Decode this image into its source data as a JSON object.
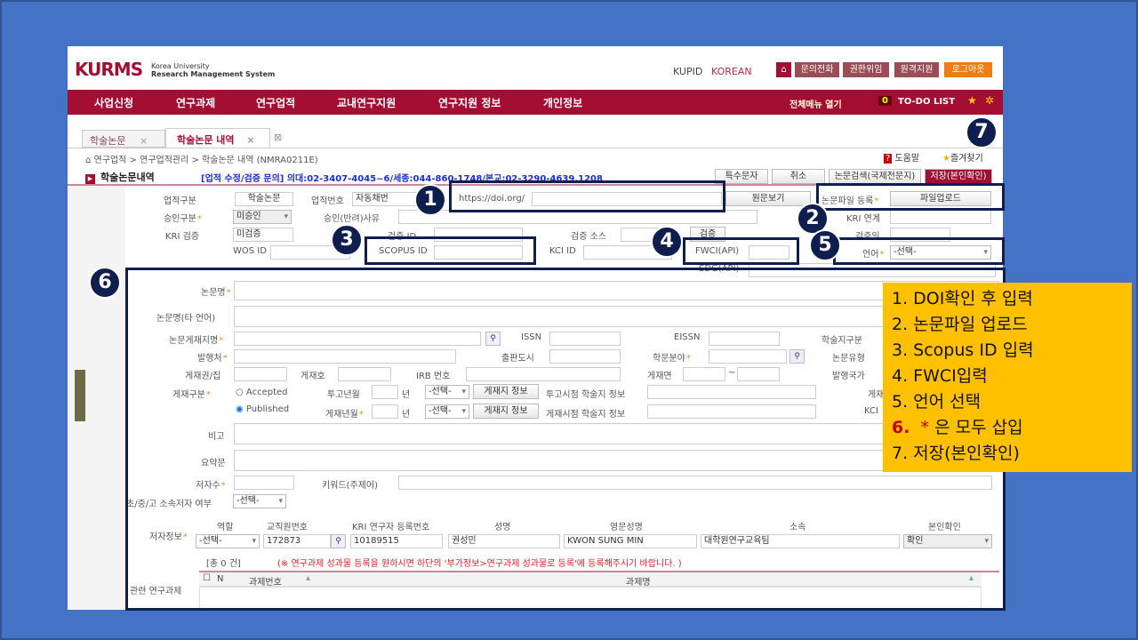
{
  "header": {
    "logo": "KURMS",
    "logo_sub1": "Korea University",
    "logo_sub2": "Research Management System",
    "kupid": "KUPID",
    "lang": "KOREAN",
    "links": [
      "문의전화",
      "권한위임",
      "원격지원"
    ],
    "logout": "로그아웃"
  },
  "nav": {
    "items": [
      "사업신청",
      "연구과제",
      "연구업적",
      "교내연구지원",
      "연구지원 정보",
      "개인정보"
    ],
    "menu_open": "전체메뉴 열기",
    "todo_count": "0",
    "todo": "TO-DO LIST"
  },
  "tabs": [
    {
      "label": "학술논문"
    },
    {
      "label": "학술논문 내역"
    }
  ],
  "breadcrumb": [
    "연구업적",
    "연구업적관리",
    "학술논문 내역 (NMRA0211E)"
  ],
  "title": "학술논문내역",
  "contact": "[업적 수정/검증 문의] 의대:02-3407-4045~6/세종:044-860-1748/본교:02-3290-4639,1208",
  "help": "도움말",
  "favorite": "즐겨찾기",
  "buttons": {
    "special": "특수문자",
    "cancel": "취소",
    "search_intl": "논문검색(국제전문지)",
    "save": "저장(본인확인)",
    "view_original": "원문보기",
    "file_upload": "파일업로드"
  },
  "form": {
    "category_label": "업적구분",
    "category": "학술논문",
    "number_label": "업적번호",
    "number": "자동채번",
    "doi_prefix": "https://doi.org/",
    "doi": "",
    "file_label": "논문파일 등록",
    "approval_label": "승인구분",
    "approval": "미승인",
    "reject_label": "승인(반려)사유",
    "kri_link_label": "KRI 연계",
    "kri_verify_label": "KRI 검증",
    "kri_verify": "미검증",
    "verify_id_label": "검증 ID",
    "verify_source_label": "검증 소스",
    "verify_btn": "검증",
    "verify_date_label": "검증일",
    "wos_label": "WOS ID",
    "scopus_label": "SCOPUS ID",
    "kci_label": "KCI ID",
    "fwci_label": "FWCI(API)",
    "lang_label": "언어",
    "lang": "-선택-",
    "sdg_label": "SDG(API)",
    "title_label": "논문명",
    "title_other_label": "논문명(타 언어)",
    "journal_label": "논문게재지명",
    "issn": "ISSN",
    "eissn": "EISSN",
    "journal_type": "학술지구분",
    "publisher": "발행처",
    "pub_city": "출판도시",
    "field": "학문분야",
    "paper_type": "논문유형",
    "volume": "게재권/집",
    "issue": "게재호",
    "irb": "IRB 번호",
    "pages": "게재면",
    "country": "발행국가",
    "pub_type": "게재구분",
    "accepted": "Accepted",
    "published": "Published",
    "submit_ym": "투고년월",
    "year": "년",
    "pub_ym": "게재년월",
    "select": "-선택-",
    "journal_info": "게재지 정보",
    "submit_info": "투고시점 학술지 정보",
    "pub_info": "게재시점 학술지 정보",
    "pub_right": "게재",
    "kci_right": "KCI",
    "remarks": "비고",
    "abstract": "요약문",
    "author_count": "저자수",
    "keywords": "키워드(주제어)",
    "school_author": "초/중/고 소속저자 여부"
  },
  "authors": {
    "label": "저자정보",
    "headers": [
      "역할",
      "교직원번호",
      "KRI 연구자 등록번호",
      "성명",
      "영문성명",
      "소속",
      "본인확인"
    ],
    "row": {
      "role": "-선택-",
      "emp_no": "172873",
      "kri_no": "10189515",
      "name": "권성민",
      "eng_name": "KWON SUNG MIN",
      "affil": "대학원연구교육팀",
      "confirm": "확인"
    }
  },
  "projects": {
    "count_text": "[총    0 건]",
    "notice": "(※ 연구과제 성과물 등록을 원하시면 하단의 '부가정보>연구과제 성과물로 등록'에 등록해주시기 바랍니다. )",
    "label": "관련 연구과제",
    "headers": [
      "N",
      "과제번호",
      "과제명"
    ]
  },
  "callouts": [
    "1",
    "2",
    "3",
    "4",
    "5",
    "6",
    "7"
  ],
  "instructions": [
    "1. DOI확인 후 입력",
    "2. 논문파일 업로드",
    "3. Scopus ID 입력",
    "4. FWCI입력",
    "5. 언어 선택",
    "6.",
    "* 은 모두 삽입",
    "7.   저장(본인확인)"
  ],
  "colors": {
    "nav": "#A50E33",
    "callout": "#0E1F4F",
    "note": "#FFC000",
    "slide": "#4472C4"
  }
}
